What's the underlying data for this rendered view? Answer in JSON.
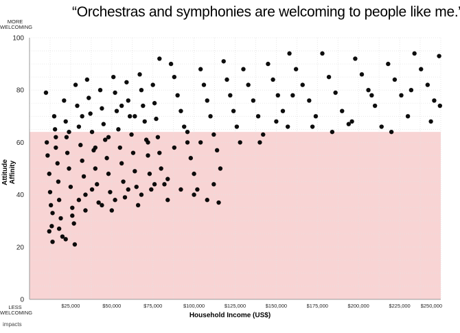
{
  "chart_data": {
    "type": "scatter",
    "title": "“Orchestras and symphonies are welcoming to people like me.”",
    "xlabel": "Household Income (US$)",
    "ylabel": "Attitude Affinity",
    "y_top_caption": [
      "MORE",
      "WELCOMING"
    ],
    "y_bottom_caption": [
      "LESS",
      "WELCOMING"
    ],
    "xlim": [
      0,
      250000
    ],
    "ylim": [
      0,
      100
    ],
    "x_ticks": [
      25000,
      50000,
      75000,
      100000,
      125000,
      150000,
      175000,
      200000,
      225000,
      250000
    ],
    "x_tick_labels": [
      "$25,000",
      "$50,000",
      "$75,000",
      "$100,000",
      "$125,000",
      "$150,000",
      "$175,000",
      "$200,000",
      "$225,000",
      "$250,000"
    ],
    "y_ticks": [
      0,
      20,
      40,
      60,
      80,
      100
    ],
    "y_tick_labels": [
      "0",
      "20",
      "40",
      "60",
      "80",
      "100"
    ],
    "shaded_region": {
      "y_from": 0,
      "y_to": 64,
      "color": "#f8d4d4"
    },
    "grid": true,
    "point_color": "#000000",
    "points": [
      [
        10000,
        79
      ],
      [
        10500,
        60
      ],
      [
        11000,
        55
      ],
      [
        12000,
        48
      ],
      [
        12500,
        41
      ],
      [
        13000,
        36
      ],
      [
        13500,
        28
      ],
      [
        14000,
        22
      ],
      [
        15000,
        70
      ],
      [
        15500,
        65
      ],
      [
        16000,
        58
      ],
      [
        17000,
        52
      ],
      [
        17500,
        45
      ],
      [
        18000,
        38
      ],
      [
        19000,
        31
      ],
      [
        20000,
        24
      ],
      [
        21000,
        76
      ],
      [
        22000,
        68
      ],
      [
        22500,
        62
      ],
      [
        23000,
        56
      ],
      [
        24000,
        50
      ],
      [
        25000,
        43
      ],
      [
        26000,
        35
      ],
      [
        27000,
        29
      ],
      [
        27500,
        21
      ],
      [
        28000,
        82
      ],
      [
        29000,
        74
      ],
      [
        30000,
        66
      ],
      [
        31000,
        59
      ],
      [
        32000,
        53
      ],
      [
        33000,
        47
      ],
      [
        34000,
        40
      ],
      [
        35000,
        84
      ],
      [
        36000,
        77
      ],
      [
        37000,
        71
      ],
      [
        38000,
        64
      ],
      [
        39000,
        57
      ],
      [
        40000,
        50
      ],
      [
        41000,
        44
      ],
      [
        42000,
        37
      ],
      [
        43000,
        80
      ],
      [
        44000,
        73
      ],
      [
        45000,
        67
      ],
      [
        46000,
        61
      ],
      [
        47000,
        54
      ],
      [
        48000,
        48
      ],
      [
        49000,
        41
      ],
      [
        50000,
        34
      ],
      [
        51000,
        85
      ],
      [
        52000,
        79
      ],
      [
        53000,
        72
      ],
      [
        54000,
        65
      ],
      [
        55000,
        58
      ],
      [
        56000,
        52
      ],
      [
        57000,
        45
      ],
      [
        58000,
        39
      ],
      [
        59000,
        83
      ],
      [
        60000,
        76
      ],
      [
        61000,
        70
      ],
      [
        62000,
        63
      ],
      [
        63000,
        56
      ],
      [
        64000,
        49
      ],
      [
        65000,
        43
      ],
      [
        66000,
        36
      ],
      [
        67000,
        86
      ],
      [
        68000,
        80
      ],
      [
        69000,
        74
      ],
      [
        70000,
        68
      ],
      [
        71000,
        61
      ],
      [
        72000,
        55
      ],
      [
        73000,
        48
      ],
      [
        74000,
        42
      ],
      [
        75000,
        82
      ],
      [
        76000,
        75
      ],
      [
        77000,
        69
      ],
      [
        78000,
        62
      ],
      [
        79000,
        56
      ],
      [
        80000,
        50
      ],
      [
        82000,
        44
      ],
      [
        84000,
        38
      ],
      [
        79000,
        92
      ],
      [
        86000,
        90
      ],
      [
        88000,
        85
      ],
      [
        90000,
        78
      ],
      [
        92000,
        72
      ],
      [
        94000,
        66
      ],
      [
        96000,
        60
      ],
      [
        98000,
        54
      ],
      [
        100000,
        48
      ],
      [
        102000,
        42
      ],
      [
        104000,
        88
      ],
      [
        106000,
        82
      ],
      [
        108000,
        76
      ],
      [
        110000,
        70
      ],
      [
        112000,
        63
      ],
      [
        114000,
        57
      ],
      [
        115000,
        37
      ],
      [
        116000,
        50
      ],
      [
        118000,
        91
      ],
      [
        120000,
        84
      ],
      [
        122000,
        78
      ],
      [
        124000,
        72
      ],
      [
        126000,
        66
      ],
      [
        128000,
        60
      ],
      [
        130000,
        88
      ],
      [
        133000,
        82
      ],
      [
        136000,
        76
      ],
      [
        139000,
        70
      ],
      [
        142000,
        63
      ],
      [
        145000,
        90
      ],
      [
        148000,
        84
      ],
      [
        151000,
        78
      ],
      [
        154000,
        72
      ],
      [
        157000,
        66
      ],
      [
        158000,
        94
      ],
      [
        162000,
        88
      ],
      [
        166000,
        82
      ],
      [
        170000,
        76
      ],
      [
        174000,
        70
      ],
      [
        178000,
        94
      ],
      [
        182000,
        85
      ],
      [
        186000,
        79
      ],
      [
        190000,
        72
      ],
      [
        194000,
        67
      ],
      [
        198000,
        92
      ],
      [
        202000,
        86
      ],
      [
        206000,
        80
      ],
      [
        210000,
        74
      ],
      [
        214000,
        66
      ],
      [
        218000,
        90
      ],
      [
        222000,
        84
      ],
      [
        226000,
        78
      ],
      [
        230000,
        70
      ],
      [
        234000,
        94
      ],
      [
        238000,
        88
      ],
      [
        242000,
        82
      ],
      [
        246000,
        76
      ],
      [
        249000,
        93
      ],
      [
        249500,
        74
      ],
      [
        12000,
        26
      ],
      [
        14000,
        33
      ],
      [
        18000,
        27
      ],
      [
        22000,
        23
      ],
      [
        26000,
        32
      ],
      [
        30000,
        38
      ],
      [
        34000,
        34
      ],
      [
        38000,
        42
      ],
      [
        44000,
        36
      ],
      [
        52000,
        38
      ],
      [
        60000,
        42
      ],
      [
        68000,
        40
      ],
      [
        76000,
        44
      ],
      [
        84000,
        46
      ],
      [
        92000,
        42
      ],
      [
        100000,
        40
      ],
      [
        108000,
        38
      ],
      [
        112000,
        44
      ],
      [
        96000,
        64
      ],
      [
        104000,
        60
      ],
      [
        88000,
        58
      ],
      [
        72000,
        60
      ],
      [
        64000,
        70
      ],
      [
        56000,
        74
      ],
      [
        48000,
        62
      ],
      [
        40000,
        58
      ],
      [
        32000,
        70
      ],
      [
        24000,
        64
      ],
      [
        16000,
        62
      ],
      [
        140000,
        60
      ],
      [
        150000,
        68
      ],
      [
        160000,
        78
      ],
      [
        172000,
        66
      ],
      [
        184000,
        64
      ],
      [
        196000,
        68
      ],
      [
        208000,
        78
      ],
      [
        220000,
        64
      ],
      [
        232000,
        80
      ],
      [
        244000,
        68
      ]
    ]
  },
  "footer": {
    "logo_text": "impacts"
  }
}
